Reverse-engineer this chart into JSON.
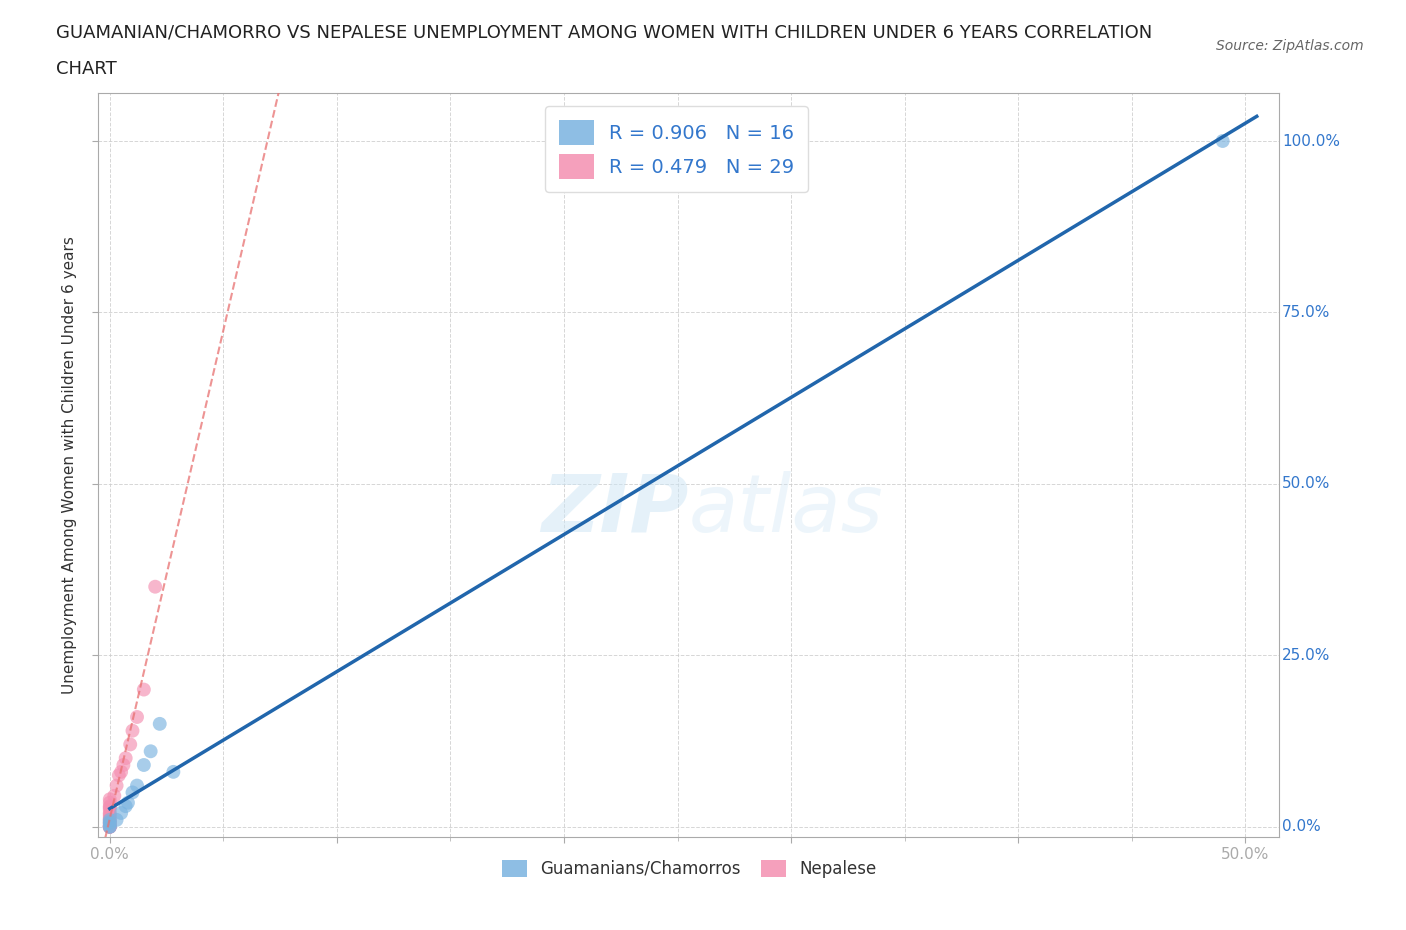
{
  "title_line1": "GUAMANIAN/CHAMORRO VS NEPALESE UNEMPLOYMENT AMONG WOMEN WITH CHILDREN UNDER 6 YEARS CORRELATION",
  "title_line2": "CHART",
  "source_text": "Source: ZipAtlas.com",
  "ylabel": "Unemployment Among Women with Children Under 6 years",
  "xticklabels_ends": [
    "0.0%",
    "50.0%"
  ],
  "yticklabels": [
    "0.0%",
    "25.0%",
    "50.0%",
    "75.0%",
    "100.0%"
  ],
  "xlim": [
    -0.005,
    0.515
  ],
  "ylim": [
    -0.015,
    1.07
  ],
  "watermark": "ZIPatlas",
  "legend_entries": [
    {
      "label": "R = 0.906   N = 16",
      "color": "#a8c8f0"
    },
    {
      "label": "R = 0.479   N = 29",
      "color": "#f4a8b8"
    }
  ],
  "guamanian_x": [
    0.0,
    0.0,
    0.0,
    0.0,
    0.0,
    0.003,
    0.005,
    0.007,
    0.008,
    0.01,
    0.012,
    0.015,
    0.018,
    0.022,
    0.028,
    0.49
  ],
  "guamanian_y": [
    0.0,
    0.0,
    0.005,
    0.007,
    0.01,
    0.01,
    0.02,
    0.03,
    0.035,
    0.05,
    0.06,
    0.09,
    0.11,
    0.15,
    0.08,
    1.0
  ],
  "nepalese_x": [
    0.0,
    0.0,
    0.0,
    0.0,
    0.0,
    0.0,
    0.0,
    0.0,
    0.0,
    0.0,
    0.0,
    0.0,
    0.0,
    0.0,
    0.0,
    0.0,
    0.0,
    0.0,
    0.002,
    0.003,
    0.004,
    0.005,
    0.006,
    0.007,
    0.009,
    0.01,
    0.012,
    0.015,
    0.02
  ],
  "nepalese_y": [
    0.0,
    0.0,
    0.0,
    0.0,
    0.0,
    0.003,
    0.005,
    0.007,
    0.01,
    0.012,
    0.015,
    0.018,
    0.02,
    0.025,
    0.028,
    0.03,
    0.035,
    0.04,
    0.045,
    0.06,
    0.075,
    0.08,
    0.09,
    0.1,
    0.12,
    0.14,
    0.16,
    0.2,
    0.35
  ],
  "blue_color": "#7ab3e0",
  "pink_color": "#f48fb1",
  "trend_blue_color": "#2166ac",
  "trend_pink_color": "#e87070",
  "background_color": "#ffffff",
  "grid_color": "#cccccc",
  "title_fontsize": 13,
  "axis_label_fontsize": 11,
  "tick_fontsize": 11,
  "source_fontsize": 10,
  "marker_size": 100,
  "legend_fontsize": 14
}
